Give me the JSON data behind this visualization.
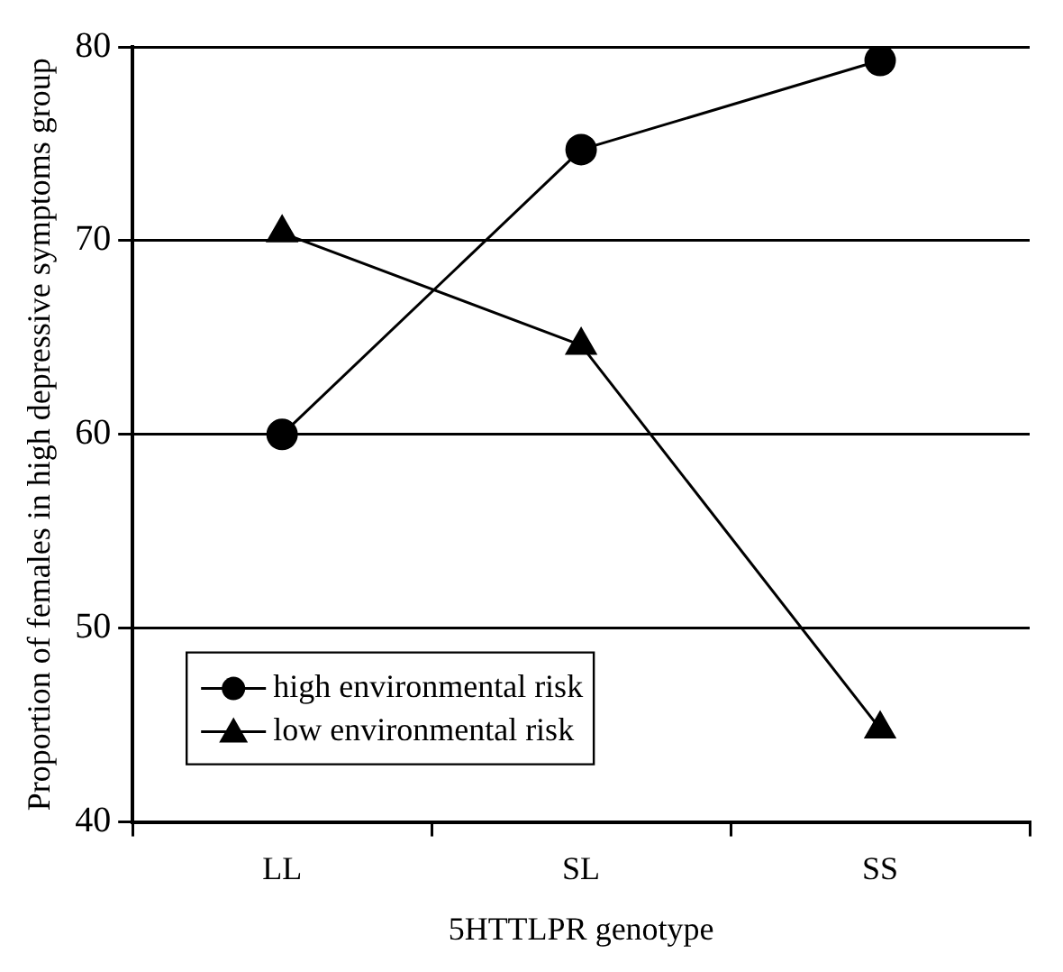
{
  "chart_data": {
    "type": "line",
    "xlabel": "5HTTLPR genotype",
    "ylabel": "Proportion of females in high depressive symptoms group",
    "categories": [
      "LL",
      "SL",
      "SS"
    ],
    "series": [
      {
        "name": "high environmental risk",
        "color": "#000000",
        "marker": "circle",
        "values": [
          60,
          74.7,
          79.3
        ]
      },
      {
        "name": "low environmental risk",
        "color": "#000000",
        "marker": "triangle",
        "values": [
          70.4,
          64.6,
          44.8
        ]
      }
    ],
    "ylim": [
      40,
      80
    ],
    "yticks": [
      40,
      50,
      60,
      70,
      80
    ],
    "grid": "y",
    "legend": "bottom left",
    "line_style": "solid"
  }
}
